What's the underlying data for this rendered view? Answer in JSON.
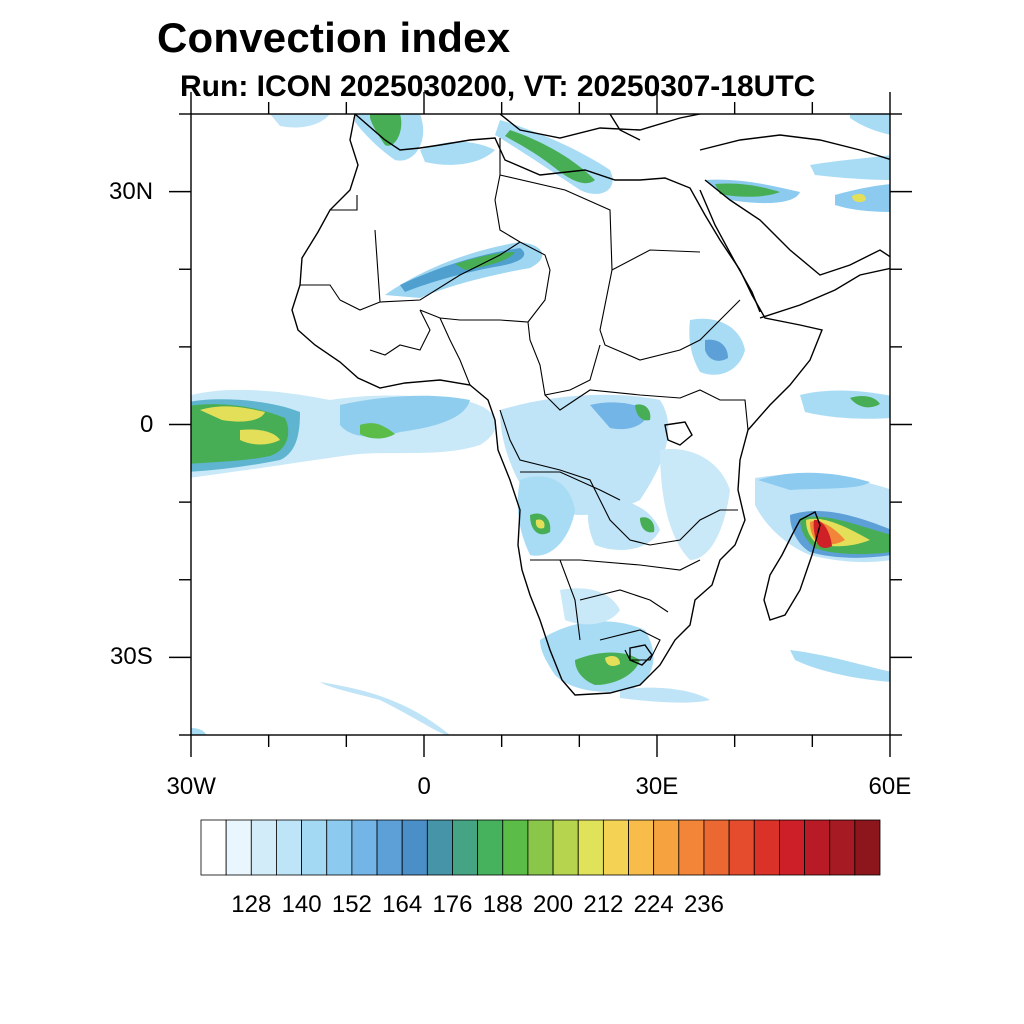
{
  "figure": {
    "title": "Convection index",
    "subtitle": "Run: ICON 2025030200,  VT: 20250307-18UTC"
  },
  "map": {
    "projection": "lat-lon",
    "lon_range": [
      -30,
      60
    ],
    "lat_range": [
      -40,
      40
    ],
    "x_ticks": [
      {
        "lon": -30,
        "label": "30W"
      },
      {
        "lon": 0,
        "label": "0"
      },
      {
        "lon": 30,
        "label": "30E"
      },
      {
        "lon": 60,
        "label": "60E"
      }
    ],
    "y_ticks": [
      {
        "lat": 30,
        "label": "30N"
      },
      {
        "lat": 0,
        "label": "0"
      },
      {
        "lat": -30,
        "label": "30S"
      }
    ],
    "minor_lon_step": 10,
    "minor_lat_step": 10
  },
  "colorbar": {
    "labels": [
      "128",
      "140",
      "152",
      "164",
      "176",
      "188",
      "200",
      "212",
      "224",
      "236"
    ],
    "colors": [
      "#ffffff",
      "#eaf6fd",
      "#d3ecfa",
      "#bde4f7",
      "#a4d9f4",
      "#8ccbef",
      "#73b5e6",
      "#5d9fd7",
      "#4b8fc8",
      "#4694a8",
      "#44a484",
      "#47b25e",
      "#5cbc48",
      "#89c64a",
      "#b6d44e",
      "#e0e35a",
      "#f4d253",
      "#f7bc4a",
      "#f5a23f",
      "#f28538",
      "#ec6832",
      "#e44c2d",
      "#da3129",
      "#cc1f27",
      "#b91b26",
      "#a51a23",
      "#8c161c"
    ]
  },
  "fields": {
    "colors": {
      "low": "#a8dcf5",
      "mid": "#4fa7c9",
      "green": "#3fae4f",
      "yellow": "#e6e05a",
      "red": "#cf2027"
    }
  }
}
